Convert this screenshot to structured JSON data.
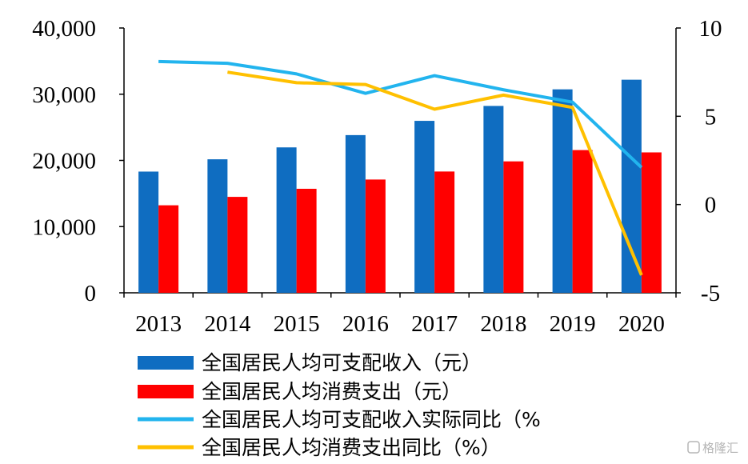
{
  "chart_data": {
    "type": "bar",
    "categories": [
      "2013",
      "2014",
      "2015",
      "2016",
      "2017",
      "2018",
      "2019",
      "2020"
    ],
    "series": [
      {
        "name": "全国居民人均可支配收入（元）",
        "kind": "bar",
        "axis": "left",
        "color": "#0F6DC1",
        "values": [
          18311,
          20167,
          21966,
          23821,
          25974,
          28228,
          30733,
          32189
        ]
      },
      {
        "name": "全国居民人均消费支出（元）",
        "kind": "bar",
        "axis": "left",
        "color": "#FF0000",
        "values": [
          13220,
          14491,
          15712,
          17111,
          18322,
          19853,
          21559,
          21210
        ]
      },
      {
        "name": "全国居民人均可支配收入实际同比（%",
        "kind": "line",
        "axis": "right",
        "color": "#22B4EE",
        "values": [
          8.1,
          8.0,
          7.4,
          6.3,
          7.3,
          6.5,
          5.8,
          2.1
        ]
      },
      {
        "name": "全国居民人均消费支出同比（%）",
        "kind": "line",
        "axis": "right",
        "color": "#FFC000",
        "values": [
          null,
          7.5,
          6.9,
          6.8,
          5.4,
          6.2,
          5.5,
          -4.0
        ]
      }
    ],
    "y_left": {
      "min": 0,
      "max": 40000,
      "ticks": [
        0,
        10000,
        20000,
        30000,
        40000
      ],
      "tick_labels": [
        "0",
        "10,000",
        "20,000",
        "30,000",
        "40,000"
      ]
    },
    "y_right": {
      "min": -5,
      "max": 10,
      "ticks": [
        -5,
        0,
        5,
        10
      ],
      "tick_labels": [
        "-5",
        "0",
        "5",
        "10"
      ]
    },
    "grid": false,
    "legend_position": "bottom"
  },
  "watermark": {
    "text": "格隆汇",
    "icon": "glh-logo-icon"
  }
}
